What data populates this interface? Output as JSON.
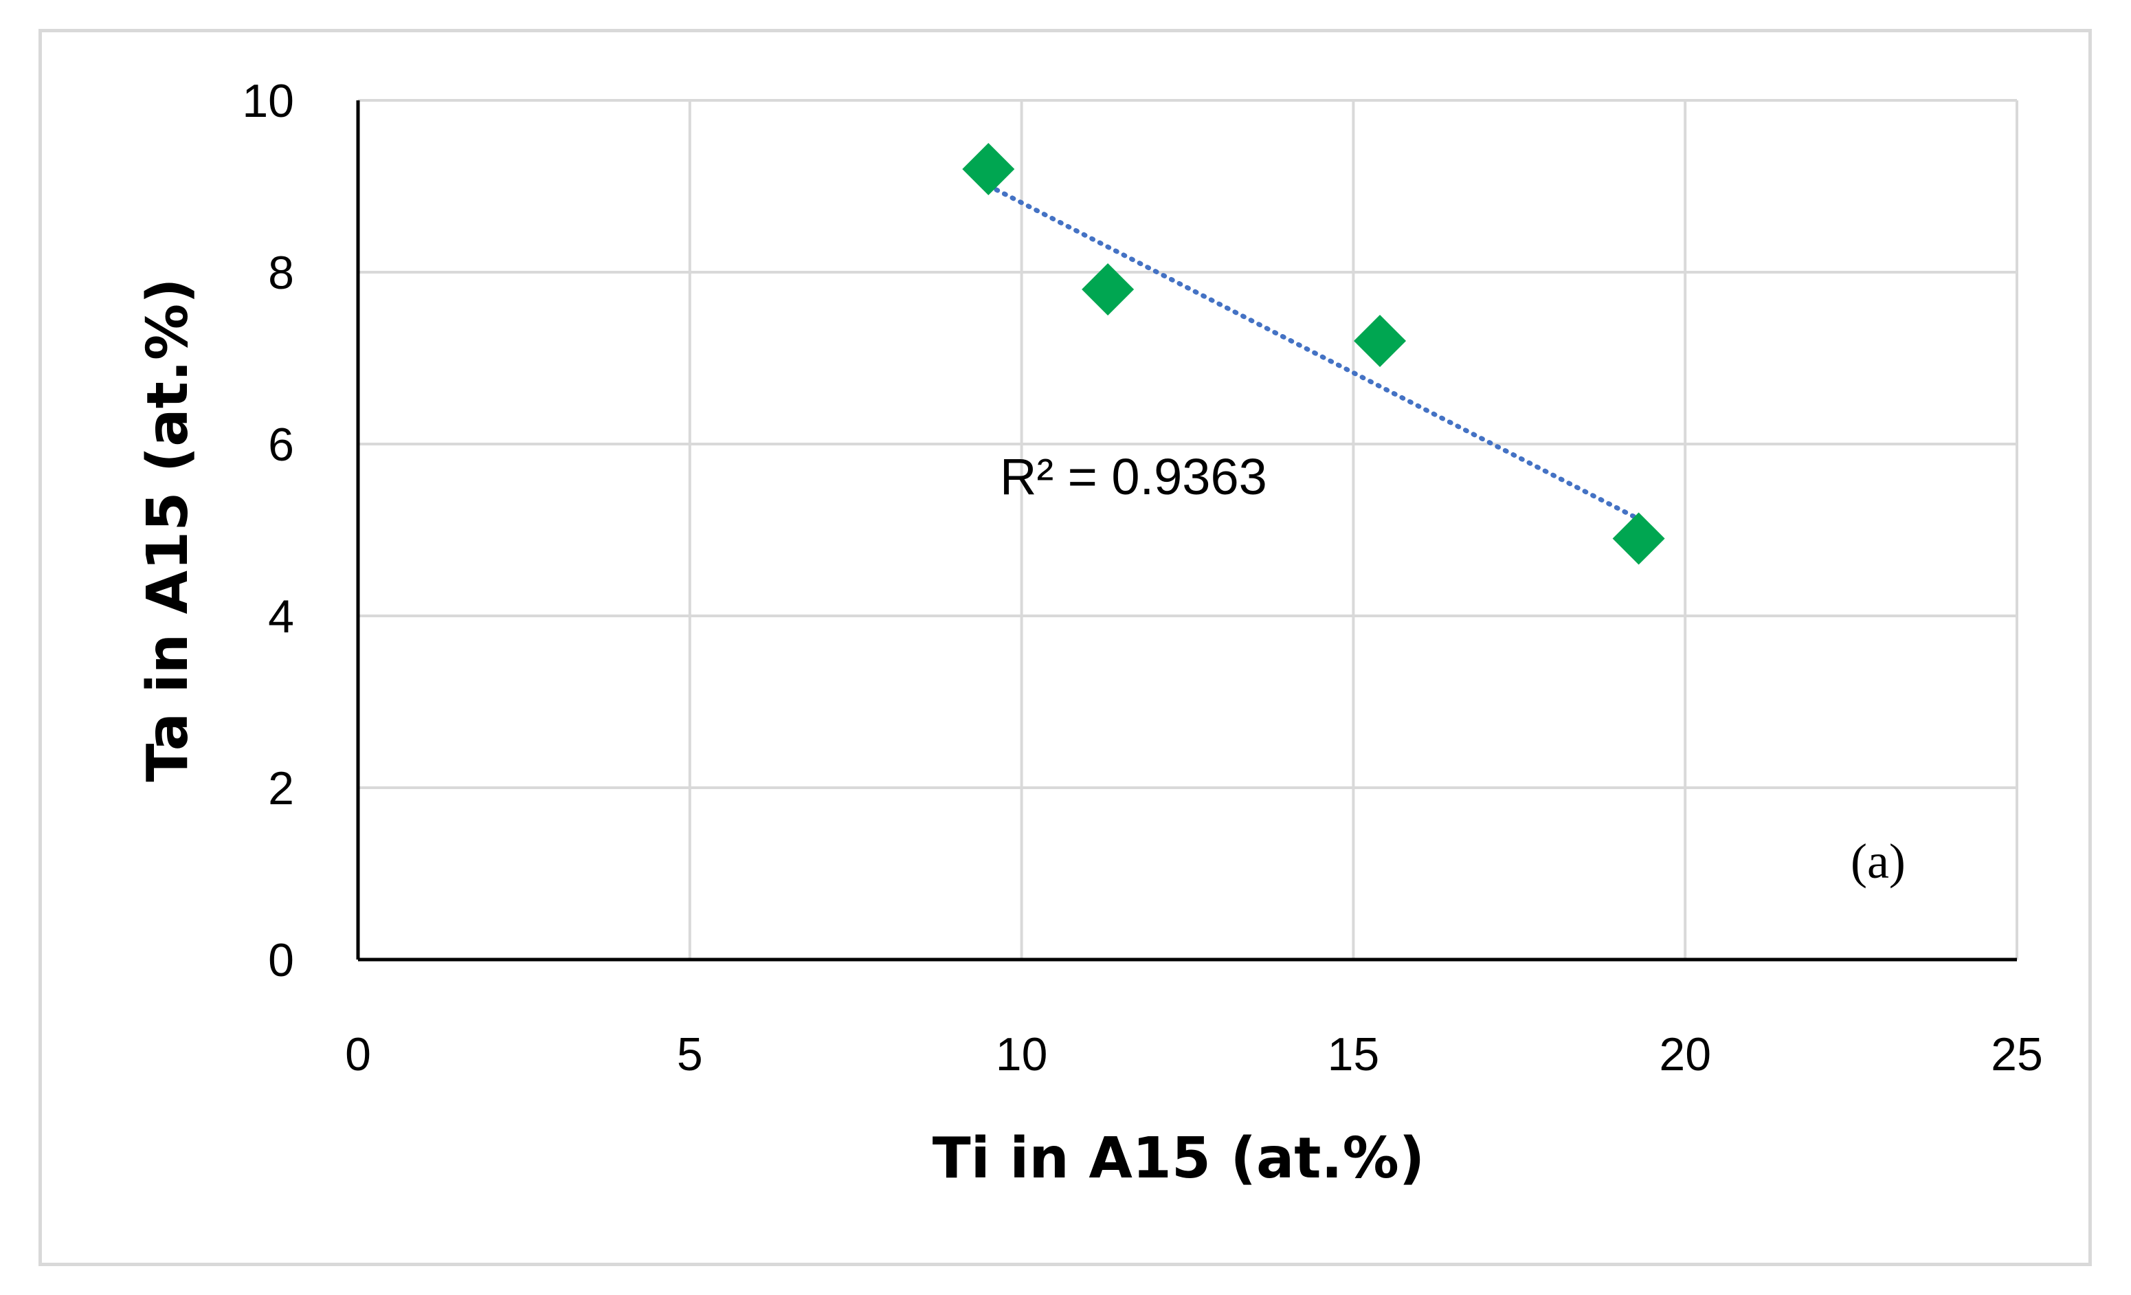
{
  "chart_data": {
    "type": "scatter",
    "xlabel": "Ti in A15 (at.%)",
    "ylabel": "Ta in A15 (at.%)",
    "xlim": [
      0,
      25
    ],
    "ylim": [
      0,
      10
    ],
    "x_ticks": [
      0,
      5,
      10,
      15,
      20,
      25
    ],
    "y_ticks": [
      0,
      2,
      4,
      6,
      8,
      10
    ],
    "x_tick_labels": [
      "0",
      "5",
      "10",
      "15",
      "20",
      "25"
    ],
    "y_tick_labels": [
      "0",
      "2",
      "4",
      "6",
      "8",
      "10"
    ],
    "grid": true,
    "marker": "diamond",
    "series": [
      {
        "points": [
          {
            "x": 9.5,
            "y": 9.2
          },
          {
            "x": 11.3,
            "y": 7.8
          },
          {
            "x": 15.4,
            "y": 7.2
          },
          {
            "x": 19.3,
            "y": 4.9
          }
        ],
        "color": "#00a651"
      }
    ],
    "trendline": {
      "type": "linear",
      "style": "dotted",
      "color": "#4472c4",
      "x_range": [
        9.5,
        19.3
      ],
      "r_squared_label": "R² = 0.9363"
    },
    "annotations": [
      {
        "text": "(a)"
      }
    ]
  }
}
